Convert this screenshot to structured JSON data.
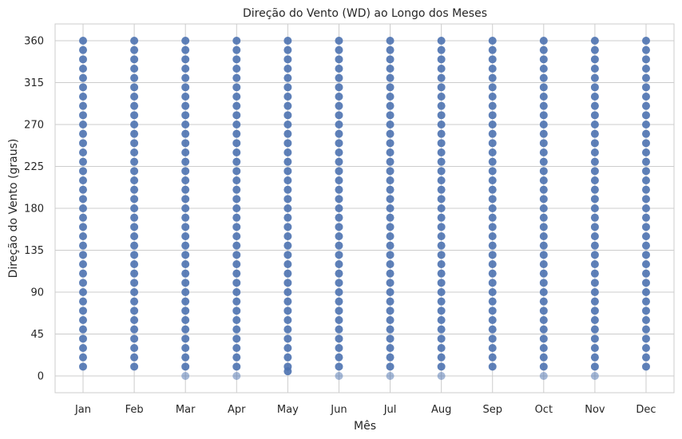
{
  "chart_data": {
    "type": "scatter",
    "title": "Direção do Vento (WD) ao Longo dos Meses",
    "xlabel": "Mês",
    "ylabel": "Direção do Vento (graus)",
    "categories": [
      "Jan",
      "Feb",
      "Mar",
      "Apr",
      "May",
      "Jun",
      "Jul",
      "Aug",
      "Sep",
      "Oct",
      "Nov",
      "Dec"
    ],
    "yticks": [
      0,
      45,
      90,
      135,
      180,
      225,
      270,
      315,
      360
    ],
    "ylim": [
      -18,
      378
    ],
    "grid": true,
    "series": [
      {
        "color": "#4c72b0",
        "points_per_month": [
          {
            "month": "Jan",
            "min": 10,
            "max": 360,
            "values_at_zero": false
          },
          {
            "month": "Feb",
            "min": 10,
            "max": 360,
            "values_at_zero": false
          },
          {
            "month": "Mar",
            "min": 0,
            "max": 360,
            "values_at_zero": true
          },
          {
            "month": "Apr",
            "min": 0,
            "max": 360,
            "values_at_zero": true
          },
          {
            "month": "May",
            "min": 5,
            "max": 360,
            "values_at_zero": false
          },
          {
            "month": "Jun",
            "min": 0,
            "max": 360,
            "values_at_zero": true
          },
          {
            "month": "Jul",
            "min": 0,
            "max": 360,
            "values_at_zero": true
          },
          {
            "month": "Aug",
            "min": 0,
            "max": 360,
            "values_at_zero": true
          },
          {
            "month": "Sep",
            "min": 10,
            "max": 360,
            "values_at_zero": false
          },
          {
            "month": "Oct",
            "min": 0,
            "max": 360,
            "values_at_zero": true
          },
          {
            "month": "Nov",
            "min": 0,
            "max": 360,
            "values_at_zero": true
          },
          {
            "month": "Dec",
            "min": 10,
            "max": 360,
            "values_at_zero": false
          }
        ],
        "value_step": 10
      }
    ]
  }
}
